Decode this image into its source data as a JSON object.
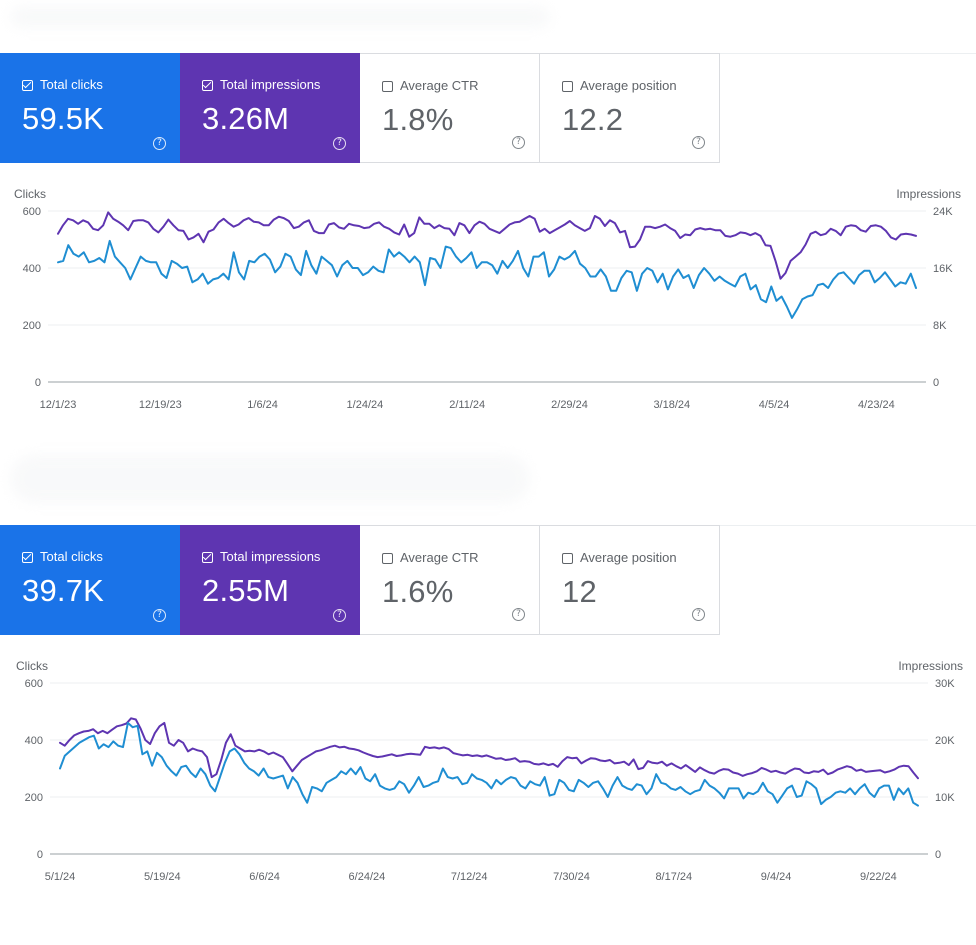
{
  "colors": {
    "clicks": "#1a73e8",
    "impressions": "#5e35b1",
    "clicks_line": "#1f8ed2",
    "impressions_line": "#5e35b1"
  },
  "panels": [
    {
      "metrics": {
        "total_clicks": {
          "label": "Total clicks",
          "value": "59.5K",
          "checked": true
        },
        "total_impressions": {
          "label": "Total impressions",
          "value": "3.26M",
          "checked": true
        },
        "average_ctr": {
          "label": "Average CTR",
          "value": "1.8%",
          "checked": false
        },
        "average_position": {
          "label": "Average position",
          "value": "12.2",
          "checked": false
        }
      },
      "chart_data": {
        "type": "line",
        "left_axis_title": "Clicks",
        "right_axis_title": "Impressions",
        "left_ticks": [
          "0",
          "200",
          "400",
          "600"
        ],
        "right_ticks": [
          "0",
          "8K",
          "16K",
          "24K"
        ],
        "left_range": [
          0,
          600
        ],
        "right_range": [
          0,
          24000
        ],
        "x_labels": [
          "12/1/23",
          "12/19/23",
          "1/6/24",
          "1/24/24",
          "2/11/24",
          "2/29/24",
          "3/18/24",
          "4/5/24",
          "4/23/24"
        ],
        "series": [
          {
            "name": "Clicks",
            "axis": "left",
            "values": [
              420,
              425,
              480,
              450,
              440,
              455,
              420,
              425,
              435,
              420,
              495,
              440,
              420,
              400,
              360,
              400,
              440,
              425,
              420,
              420,
              380,
              365,
              425,
              415,
              400,
              405,
              350,
              360,
              380,
              345,
              360,
              365,
              380,
              360,
              455,
              385,
              360,
              425,
              420,
              440,
              450,
              430,
              385,
              405,
              450,
              440,
              395,
              375,
              460,
              410,
              380,
              440,
              425,
              410,
              370,
              410,
              425,
              400,
              400,
              375,
              385,
              405,
              390,
              385,
              465,
              440,
              455,
              440,
              420,
              440,
              420,
              340,
              435,
              430,
              400,
              475,
              470,
              440,
              420,
              435,
              455,
              400,
              420,
              420,
              410,
              380,
              425,
              400,
              425,
              460,
              400,
              370,
              440,
              440,
              455,
              370,
              395,
              440,
              430,
              440,
              460,
              415,
              400,
              370,
              370,
              395,
              370,
              320,
              320,
              365,
              390,
              385,
              320,
              380,
              400,
              390,
              350,
              380,
              325,
              370,
              395,
              365,
              375,
              330,
              375,
              400,
              380,
              355,
              370,
              355,
              345,
              335,
              370,
              380,
              325,
              340,
              290,
              280,
              335,
              285,
              300,
              265,
              225,
              255,
              290,
              300,
              305,
              340,
              345,
              330,
              360,
              380,
              385,
              365,
              345,
              375,
              390,
              390,
              350,
              365,
              385,
              360,
              335,
              350,
              345,
              380,
              330
            ]
          },
          {
            "name": "Impressions",
            "axis": "right",
            "values": [
              20800,
              22000,
              22900,
              22700,
              22200,
              22700,
              22400,
              21500,
              21300,
              22000,
              23800,
              22900,
              22500,
              22000,
              21300,
              22600,
              22700,
              22700,
              22400,
              21500,
              21000,
              21800,
              22800,
              22000,
              21300,
              21200,
              20000,
              20300,
              20800,
              19600,
              21100,
              21400,
              22400,
              22900,
              22300,
              21800,
              22100,
              22700,
              23000,
              22500,
              22400,
              22000,
              22000,
              22800,
              23200,
              23000,
              22600,
              21600,
              21800,
              22400,
              22700,
              21200,
              20900,
              20900,
              22100,
              22300,
              21700,
              21500,
              22200,
              22000,
              21900,
              21600,
              21700,
              22200,
              22400,
              21800,
              21500,
              21000,
              20700,
              22100,
              20400,
              20900,
              23100,
              22200,
              22200,
              21600,
              22000,
              21600,
              21500,
              20600,
              22300,
              22000,
              20900,
              22000,
              22500,
              22200,
              21500,
              21200,
              20900,
              21500,
              22100,
              22400,
              22500,
              22900,
              23300,
              22900,
              21100,
              21500,
              20900,
              21300,
              21700,
              22100,
              22600,
              22000,
              21600,
              21200,
              21600,
              23300,
              22900,
              21900,
              22700,
              22300,
              21000,
              21200,
              18900,
              19000,
              20000,
              21800,
              21800,
              21600,
              21800,
              22100,
              21600,
              21200,
              20200,
              20700,
              20600,
              21400,
              21600,
              21400,
              21500,
              21300,
              21300,
              20500,
              20400,
              20600,
              21000,
              20900,
              20600,
              20900,
              20500,
              19200,
              19100,
              17000,
              14500,
              15300,
              17000,
              17600,
              18200,
              19300,
              20800,
              21100,
              20600,
              20800,
              21500,
              21200,
              20600,
              21800,
              22000,
              21900,
              21300,
              21100,
              21900,
              22000,
              21800,
              21200,
              20300,
              20000,
              20700,
              20800,
              20700,
              20500
            ]
          }
        ]
      }
    },
    {
      "metrics": {
        "total_clicks": {
          "label": "Total clicks",
          "value": "39.7K",
          "checked": true
        },
        "total_impressions": {
          "label": "Total impressions",
          "value": "2.55M",
          "checked": true
        },
        "average_ctr": {
          "label": "Average CTR",
          "value": "1.6%",
          "checked": false
        },
        "average_position": {
          "label": "Average position",
          "value": "12",
          "checked": false
        }
      },
      "chart_data": {
        "type": "line",
        "left_axis_title": "Clicks",
        "right_axis_title": "Impressions",
        "left_ticks": [
          "0",
          "200",
          "400",
          "600"
        ],
        "right_ticks": [
          "0",
          "10K",
          "20K",
          "30K"
        ],
        "left_range": [
          0,
          600
        ],
        "right_range": [
          0,
          30000
        ],
        "x_labels": [
          "5/1/24",
          "5/19/24",
          "6/6/24",
          "6/24/24",
          "7/12/24",
          "7/30/24",
          "8/17/24",
          "9/4/24",
          "9/22/24"
        ],
        "series": [
          {
            "name": "Clicks",
            "axis": "left",
            "values": [
              300,
              345,
              360,
              375,
              390,
              400,
              410,
              415,
              370,
              385,
              375,
              395,
              380,
              375,
              460,
              445,
              450,
              350,
              360,
              310,
              355,
              340,
              310,
              290,
              275,
              305,
              310,
              285,
              270,
              300,
              280,
              240,
              220,
              270,
              320,
              360,
              370,
              350,
              320,
              300,
              290,
              275,
              300,
              270,
              265,
              270,
              275,
              230,
              270,
              250,
              210,
              180,
              235,
              230,
              220,
              250,
              260,
              270,
              290,
              280,
              300,
              280,
              305,
              265,
              255,
              280,
              240,
              230,
              225,
              230,
              255,
              245,
              215,
              240,
              270,
              235,
              240,
              250,
              255,
              300,
              270,
              265,
              270,
              245,
              250,
              280,
              265,
              260,
              250,
              230,
              260,
              245,
              260,
              270,
              265,
              240,
              230,
              255,
              245,
              240,
              270,
              205,
              210,
              260,
              250,
              225,
              220,
              260,
              250,
              235,
              250,
              255,
              230,
              200,
              240,
              270,
              240,
              230,
              225,
              245,
              240,
              210,
              230,
              280,
              250,
              245,
              230,
              225,
              235,
              220,
              210,
              220,
              225,
              260,
              240,
              230,
              215,
              195,
              230,
              230,
              230,
              195,
              215,
              210,
              220,
              250,
              220,
              210,
              180,
              205,
              230,
              240,
              200,
              205,
              255,
              245,
              230,
              175,
              190,
              200,
              215,
              220,
              215,
              230,
              210,
              230,
              245,
              215,
              200,
              230,
              240,
              240,
              190,
              230,
              210,
              230,
              180,
              170
            ]
          },
          {
            "name": "Impressions",
            "axis": "right",
            "values": [
              19500,
              19000,
              20000,
              20800,
              21200,
              21500,
              21600,
              21900,
              21200,
              21600,
              21200,
              21800,
              22400,
              22600,
              22900,
              23800,
              23600,
              22000,
              20000,
              19300,
              21200,
              22400,
              23000,
              19500,
              19000,
              20000,
              19500,
              18000,
              18500,
              18200,
              18000,
              17000,
              13500,
              14000,
              16500,
              19500,
              21000,
              19000,
              18500,
              18000,
              18100,
              18000,
              18300,
              18000,
              17500,
              17800,
              17400,
              17000,
              15800,
              14500,
              15500,
              16500,
              17000,
              17500,
              18000,
              18200,
              18500,
              18800,
              19000,
              18700,
              18800,
              18500,
              18400,
              18200,
              17800,
              17500,
              17200,
              17000,
              17100,
              17300,
              17500,
              17200,
              17300,
              17500,
              17600,
              17500,
              17400,
              18800,
              18600,
              18700,
              18500,
              18700,
              18400,
              17700,
              17500,
              17300,
              17400,
              17200,
              17300,
              17100,
              17300,
              17000,
              16700,
              16800,
              16500,
              16600,
              16800,
              16200,
              16300,
              16200,
              15800,
              15700,
              15900,
              15600,
              15800,
              15300,
              16300,
              17000,
              16800,
              16900,
              15900,
              16400,
              16800,
              16700,
              16400,
              16300,
              16500,
              15900,
              16000,
              16200,
              15600,
              16600,
              14900,
              15100,
              16300,
              16000,
              15900,
              16200,
              15500,
              15900,
              15400,
              15000,
              15600,
              15000,
              14400,
              15200,
              14700,
              14300,
              14100,
              14600,
              14900,
              14800,
              14300,
              14100,
              13700,
              14000,
              14200,
              14500,
              15100,
              14800,
              14400,
              14600,
              14300,
              14100,
              14600,
              15000,
              14900,
              14300,
              14200,
              14500,
              14400,
              14800,
              14000,
              14300,
              14800,
              15100,
              15400,
              15200,
              14600,
              14800,
              14400,
              14500,
              14600,
              14700,
              14300,
              14500,
              14800,
              15300,
              15500,
              15400,
              14300,
              13300
            ]
          }
        ]
      }
    }
  ]
}
